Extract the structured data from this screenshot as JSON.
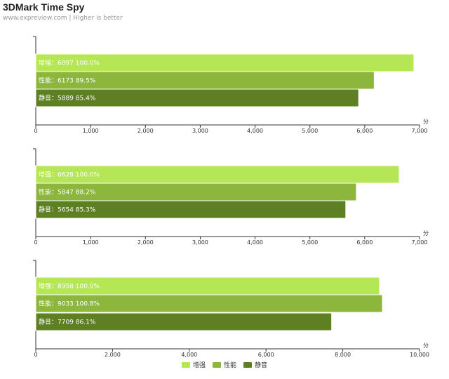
{
  "title": "3DMark Time Spy",
  "subtitle": "www.expreview.com | Higher is better",
  "colors": {
    "增强": "#b5e655",
    "性能": "#8db63c",
    "静音": "#5e7f22"
  },
  "chart_data": [
    {
      "type": "bar",
      "orientation": "horizontal",
      "unit": "分",
      "xlim": [
        0,
        7000
      ],
      "ticks": [
        "0",
        "1,000",
        "2,000",
        "3,000",
        "4,000",
        "5,000",
        "6,000",
        "7,000"
      ],
      "tick_values": [
        0,
        1000,
        2000,
        3000,
        4000,
        5000,
        6000,
        7000
      ],
      "bars": [
        {
          "series": "增强",
          "value": 6897,
          "pct": "100.0%",
          "label": "增强：6897  100.0%"
        },
        {
          "series": "性能",
          "value": 6173,
          "pct": "89.5%",
          "label": "性能：6173  89.5%"
        },
        {
          "series": "静音",
          "value": 5889,
          "pct": "85.4%",
          "label": "静音：5889  85.4%"
        }
      ]
    },
    {
      "type": "bar",
      "orientation": "horizontal",
      "unit": "分",
      "xlim": [
        0,
        7000
      ],
      "ticks": [
        "0",
        "1,000",
        "2,000",
        "3,000",
        "4,000",
        "5,000",
        "6,000",
        "7,000"
      ],
      "tick_values": [
        0,
        1000,
        2000,
        3000,
        4000,
        5000,
        6000,
        7000
      ],
      "bars": [
        {
          "series": "增强",
          "value": 6628,
          "pct": "100.0%",
          "label": "增强：6628  100.0%"
        },
        {
          "series": "性能",
          "value": 5847,
          "pct": "88.2%",
          "label": "性能：5847  88.2%"
        },
        {
          "series": "静音",
          "value": 5654,
          "pct": "85.3%",
          "label": "静音：5654  85.3%"
        }
      ]
    },
    {
      "type": "bar",
      "orientation": "horizontal",
      "unit": "分",
      "xlim": [
        0,
        10000
      ],
      "ticks": [
        "0",
        "2,000",
        "4,000",
        "6,000",
        "8,000",
        "10,000"
      ],
      "tick_values": [
        0,
        2000,
        4000,
        6000,
        8000,
        10000
      ],
      "bars": [
        {
          "series": "增强",
          "value": 8958,
          "pct": "100.0%",
          "label": "增强：8958  100.0%"
        },
        {
          "series": "性能",
          "value": 9033,
          "pct": "100.8%",
          "label": "性能：9033  100.8%"
        },
        {
          "series": "静音",
          "value": 7709,
          "pct": "86.1%",
          "label": "静音：7709  86.1%"
        }
      ]
    }
  ],
  "legend": [
    {
      "name": "增强",
      "color": "#b5e655"
    },
    {
      "name": "性能",
      "color": "#8db63c"
    },
    {
      "name": "静音",
      "color": "#5e7f22"
    }
  ]
}
